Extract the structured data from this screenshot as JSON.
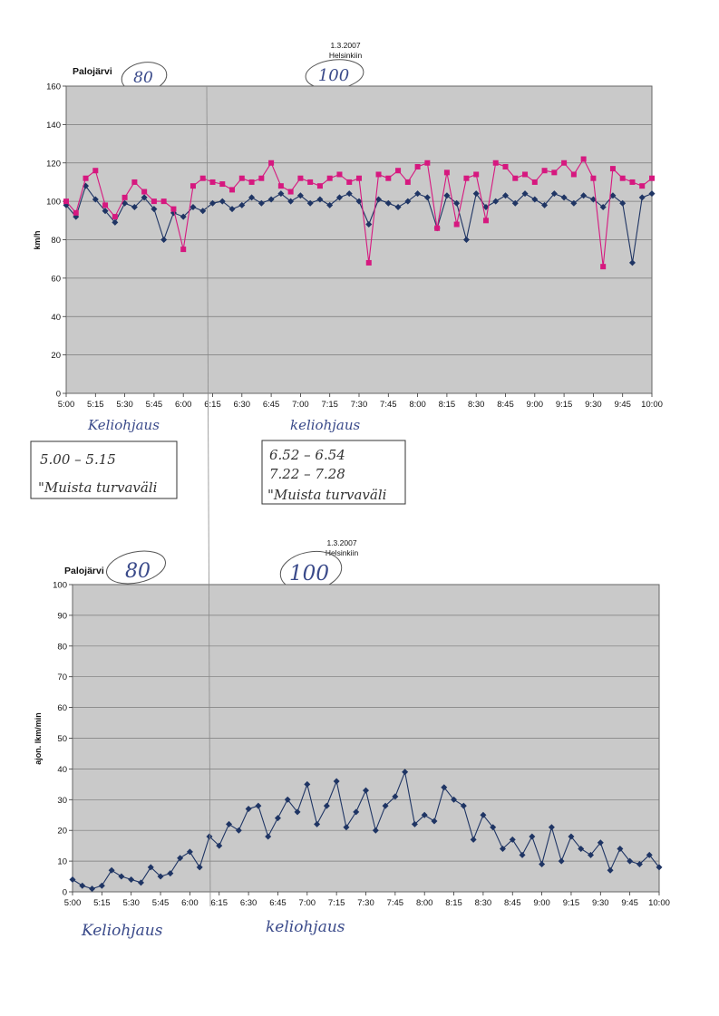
{
  "annotations": {
    "top_chart": {
      "circled_80": "80",
      "circled_100": "100",
      "below_axis_left": "Keliohjaus",
      "below_axis_right": "keliohjaus",
      "box_left": [
        "5.00 – 5.15",
        "\"Muista turvaväli"
      ],
      "box_right": [
        "6.52 – 6.54",
        "7.22 – 7.28",
        "\"Muista turvaväli"
      ]
    },
    "bottom_chart": {
      "circled_80": "80",
      "circled_100": "100",
      "below_axis_left": "Keliohjaus",
      "below_axis_right": "keliohjaus"
    }
  },
  "colors": {
    "plot_bg": "#c9c9c9",
    "series_1": "#1f3564",
    "series_2": "#d6187f",
    "gridline": "#7a7a7a"
  },
  "chart_data": [
    {
      "type": "line",
      "title": "Palojärvi",
      "date": "1.3.2007",
      "direction": "Helsinkiin",
      "ylabel": "km/h",
      "ylim": [
        0,
        160
      ],
      "yticks": [
        "0",
        "20",
        "40",
        "60",
        "80",
        "100",
        "120",
        "140",
        "160"
      ],
      "xticks": [
        "5:00",
        "5:15",
        "5:30",
        "5:45",
        "6:00",
        "6:15",
        "6:30",
        "6:45",
        "7:00",
        "7:15",
        "7:30",
        "7:45",
        "8:00",
        "8:15",
        "8:30",
        "8:45",
        "9:00",
        "9:15",
        "9:30",
        "9:45",
        "10:00"
      ],
      "grid": true,
      "x": [
        "5:00",
        "5:05",
        "5:10",
        "5:15",
        "5:20",
        "5:25",
        "5:30",
        "5:35",
        "5:40",
        "5:45",
        "5:50",
        "5:55",
        "6:00",
        "6:05",
        "6:10",
        "6:15",
        "6:20",
        "6:25",
        "6:30",
        "6:35",
        "6:40",
        "6:45",
        "6:50",
        "6:55",
        "7:00",
        "7:05",
        "7:10",
        "7:15",
        "7:20",
        "7:25",
        "7:30",
        "7:35",
        "7:40",
        "7:45",
        "7:50",
        "7:55",
        "8:00",
        "8:05",
        "8:10",
        "8:15",
        "8:20",
        "8:25",
        "8:30",
        "8:35",
        "8:40",
        "8:45",
        "8:50",
        "8:55",
        "9:00",
        "9:05",
        "9:10",
        "9:15",
        "9:20",
        "9:25",
        "9:30",
        "9:35",
        "9:40",
        "9:45",
        "9:50",
        "9:55",
        "10:00"
      ],
      "series": [
        {
          "values": [
            98,
            92,
            108,
            101,
            95,
            89,
            99,
            97,
            102,
            96,
            80,
            94,
            92,
            97,
            95,
            99,
            100,
            96,
            98,
            102,
            99,
            101,
            104,
            100,
            103,
            99,
            101,
            98,
            102,
            104,
            100,
            88,
            101,
            99,
            97,
            100,
            104,
            102,
            86,
            103,
            99,
            80,
            104,
            97,
            100,
            103,
            99,
            104,
            101,
            98,
            104,
            102,
            99,
            103,
            101,
            97,
            103,
            99,
            68,
            102,
            104
          ]
        },
        {
          "values": [
            100,
            94,
            112,
            116,
            98,
            92,
            102,
            110,
            105,
            100,
            100,
            96,
            75,
            108,
            112,
            110,
            109,
            106,
            112,
            110,
            112,
            120,
            108,
            105,
            112,
            110,
            108,
            112,
            114,
            110,
            112,
            68,
            114,
            112,
            116,
            110,
            118,
            120,
            86,
            115,
            88,
            112,
            114,
            90,
            120,
            118,
            112,
            114,
            110,
            116,
            115,
            120,
            114,
            122,
            112,
            66,
            117,
            112,
            110,
            108,
            112
          ]
        }
      ]
    },
    {
      "type": "line",
      "title": "Palojärvi",
      "date": "1.3.2007",
      "direction": "Helsinkiin",
      "ylabel": "ajon. lkm/min",
      "ylim": [
        0,
        100
      ],
      "yticks": [
        "0",
        "10",
        "20",
        "30",
        "40",
        "50",
        "60",
        "70",
        "80",
        "90",
        "100"
      ],
      "xticks": [
        "5:00",
        "5:15",
        "5:30",
        "5:45",
        "6:00",
        "6:15",
        "6:30",
        "6:45",
        "7:00",
        "7:15",
        "7:30",
        "7:45",
        "8:00",
        "8:15",
        "8:30",
        "8:45",
        "9:00",
        "9:15",
        "9:30",
        "9:45",
        "10:00"
      ],
      "grid": true,
      "x": [
        "5:00",
        "5:05",
        "5:10",
        "5:15",
        "5:20",
        "5:25",
        "5:30",
        "5:35",
        "5:40",
        "5:45",
        "5:50",
        "5:55",
        "6:00",
        "6:05",
        "6:10",
        "6:15",
        "6:20",
        "6:25",
        "6:30",
        "6:35",
        "6:40",
        "6:45",
        "6:50",
        "6:55",
        "7:00",
        "7:05",
        "7:10",
        "7:15",
        "7:20",
        "7:25",
        "7:30",
        "7:35",
        "7:40",
        "7:45",
        "7:50",
        "7:55",
        "8:00",
        "8:05",
        "8:10",
        "8:15",
        "8:20",
        "8:25",
        "8:30",
        "8:35",
        "8:40",
        "8:45",
        "8:50",
        "8:55",
        "9:00",
        "9:05",
        "9:10",
        "9:15",
        "9:20",
        "9:25",
        "9:30",
        "9:35",
        "9:40",
        "9:45",
        "9:50",
        "9:55",
        "10:00"
      ],
      "series": [
        {
          "values": [
            4,
            2,
            1,
            2,
            7,
            5,
            4,
            3,
            8,
            5,
            6,
            11,
            13,
            8,
            18,
            15,
            22,
            20,
            27,
            28,
            18,
            24,
            30,
            26,
            35,
            22,
            28,
            36,
            21,
            26,
            33,
            20,
            28,
            31,
            39,
            22,
            25,
            23,
            34,
            30,
            28,
            17,
            25,
            21,
            14,
            17,
            12,
            18,
            9,
            21,
            10,
            18,
            14,
            12,
            16,
            7,
            14,
            10,
            9,
            12,
            8
          ]
        }
      ]
    }
  ]
}
